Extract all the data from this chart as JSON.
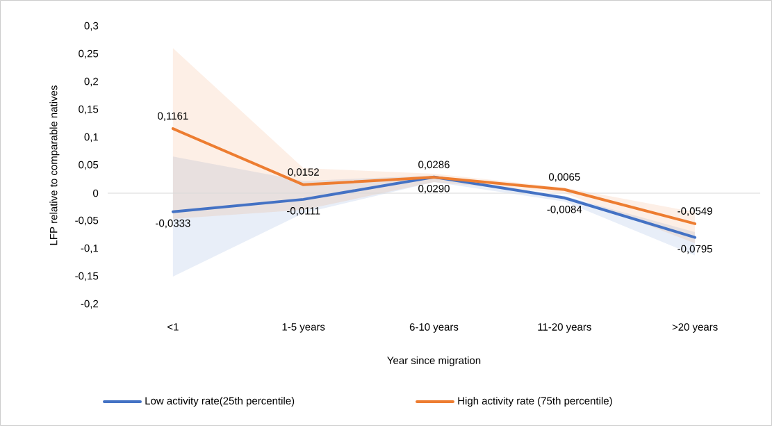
{
  "chart_data": {
    "type": "line",
    "xlabel": "Year since migration",
    "ylabel": "LFP relative to comparable natives",
    "categories": [
      "<1",
      "1-5 years",
      "6-10 years",
      "11-20 years",
      ">20 years"
    ],
    "series": [
      {
        "name": "Low activity rate(25th percentile)",
        "color": "#4472c4",
        "values": [
          -0.0333,
          -0.0111,
          0.029,
          -0.0084,
          -0.0795
        ],
        "value_labels": [
          "-0,0333",
          "-0,0111",
          "0,0290",
          "-0,0084",
          "-0,0795"
        ],
        "lower": [
          -0.15,
          -0.036,
          0.02,
          -0.015,
          -0.112
        ],
        "upper": [
          0.066,
          0.022,
          0.032,
          -0.005,
          -0.07
        ]
      },
      {
        "name": "High activity rate (75th percentile)",
        "color": "#ed7d31",
        "values": [
          0.1161,
          0.0152,
          0.0286,
          0.0065,
          -0.0549
        ],
        "value_labels": [
          "0,1161",
          "0,0152",
          "0,0286",
          "0,0065",
          "-0,0549"
        ],
        "lower": [
          -0.046,
          -0.03,
          0.02,
          0.0,
          -0.09
        ],
        "upper": [
          0.261,
          0.045,
          0.035,
          0.01,
          -0.034
        ]
      }
    ],
    "ylim": [
      -0.2,
      0.3
    ],
    "yticks": [
      {
        "value": -0.2,
        "label": "-0,2"
      },
      {
        "value": -0.15,
        "label": "-0,15"
      },
      {
        "value": -0.1,
        "label": "-0,1"
      },
      {
        "value": -0.05,
        "label": "-0,05"
      },
      {
        "value": 0,
        "label": "0"
      },
      {
        "value": 0.05,
        "label": "0,05"
      },
      {
        "value": 0.1,
        "label": "0,1"
      },
      {
        "value": 0.15,
        "label": "0,15"
      },
      {
        "value": 0.2,
        "label": "0,2"
      },
      {
        "value": 0.25,
        "label": "0,25"
      },
      {
        "value": 0.3,
        "label": "0,3"
      }
    ],
    "ref_lines": [
      {
        "axis": "y",
        "value": 0,
        "color": "#d9d9d9"
      }
    ],
    "legend": "bottom",
    "grid": false,
    "marker": "none",
    "line_style": "solid"
  }
}
